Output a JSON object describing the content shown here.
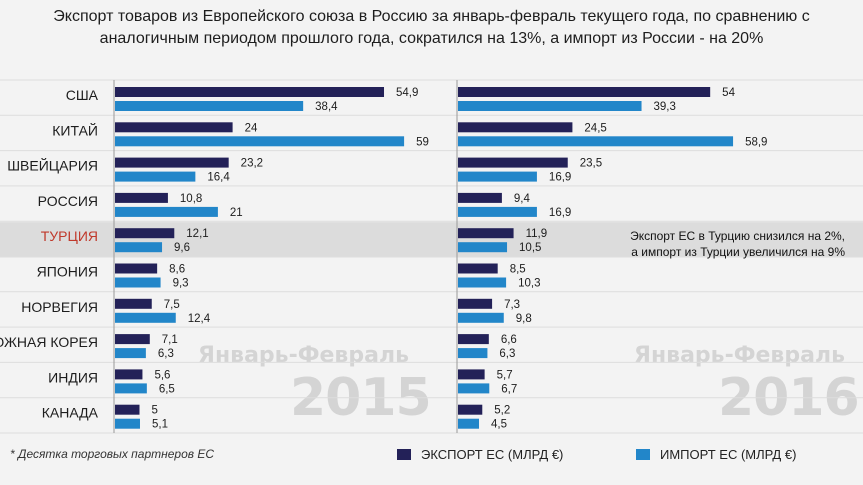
{
  "title_line1": "Экспорт товаров из Европейского союза в Россию за январь-февраль текущего года, по сравнению с",
  "title_line2": "аналогичным периодом прошлого года, сократился на 13%, а импорт из России - на 20%",
  "footnote": "* Десятка торговых партнеров ЕС",
  "legend": {
    "export": "ЭКСПОРТ ЕС (МЛРД €)",
    "import": "ИМПОРТ ЕС (МЛРД €)"
  },
  "note_line1": "Экспорт ЕС в Турцию снизился на 2%,",
  "note_line2": "а импорт из Турции увеличился на 9%",
  "watermark": {
    "left_label": "Январь-Февраль",
    "left_year": "2015",
    "right_label": "Январь-Февраль",
    "right_year": "2016"
  },
  "colors": {
    "export": "#232158",
    "import": "#2286c9",
    "highlight_row": "#dcdcdc",
    "highlight_text": "#c0392b"
  },
  "chart_data": [
    {
      "type": "bar",
      "period": "2015",
      "categories": [
        "США",
        "КИТАЙ",
        "ШВЕЙЦАРИЯ",
        "РОССИЯ",
        "ТУРЦИЯ",
        "ЯПОНИЯ",
        "НОРВЕГИЯ",
        "ЮЖНАЯ КОРЕЯ",
        "ИНДИЯ",
        "КАНАДА"
      ],
      "highlight": "ТУРЦИЯ",
      "series": [
        {
          "name": "ЭКСПОРТ ЕС (МЛРД €)",
          "values": [
            54.9,
            24,
            23.2,
            10.8,
            12.1,
            8.6,
            7.5,
            7.1,
            5.6,
            5
          ],
          "labels": [
            "54,9",
            "24",
            "23,2",
            "10,8",
            "12,1",
            "8,6",
            "7,5",
            "7,1",
            "5,6",
            "5"
          ]
        },
        {
          "name": "ИМПОРТ ЕС (МЛРД €)",
          "values": [
            38.4,
            59,
            16.4,
            21,
            9.6,
            9.3,
            12.4,
            6.3,
            6.5,
            5.1
          ],
          "labels": [
            "38,4",
            "59",
            "16,4",
            "21",
            "9,6",
            "9,3",
            "12,4",
            "6,3",
            "6,5",
            "5,1"
          ]
        }
      ]
    },
    {
      "type": "bar",
      "period": "2016",
      "categories": [
        "США",
        "КИТАЙ",
        "ШВЕЙЦАРИЯ",
        "РОССИЯ",
        "ТУРЦИЯ",
        "ЯПОНИЯ",
        "НОРВЕГИЯ",
        "ЮЖНАЯ КОРЕЯ",
        "ИНДИЯ",
        "КАНАДА"
      ],
      "highlight": "ТУРЦИЯ",
      "series": [
        {
          "name": "ЭКСПОРТ ЕС (МЛРД €)",
          "values": [
            54,
            24.5,
            23.5,
            9.4,
            11.9,
            8.5,
            7.3,
            6.6,
            5.7,
            5.2
          ],
          "labels": [
            "54",
            "24,5",
            "23,5",
            "9,4",
            "11,9",
            "8,5",
            "7,3",
            "6,6",
            "5,7",
            "5,2"
          ]
        },
        {
          "name": "ИМПОРТ ЕС (МЛРД €)",
          "values": [
            39.3,
            58.9,
            16.9,
            16.9,
            10.5,
            10.3,
            9.8,
            6.3,
            6.7,
            4.5
          ],
          "labels": [
            "39,3",
            "58,9",
            "16,9",
            "16,9",
            "10,5",
            "10,3",
            "9,8",
            "6,3",
            "6,7",
            "4,5"
          ]
        }
      ]
    }
  ]
}
